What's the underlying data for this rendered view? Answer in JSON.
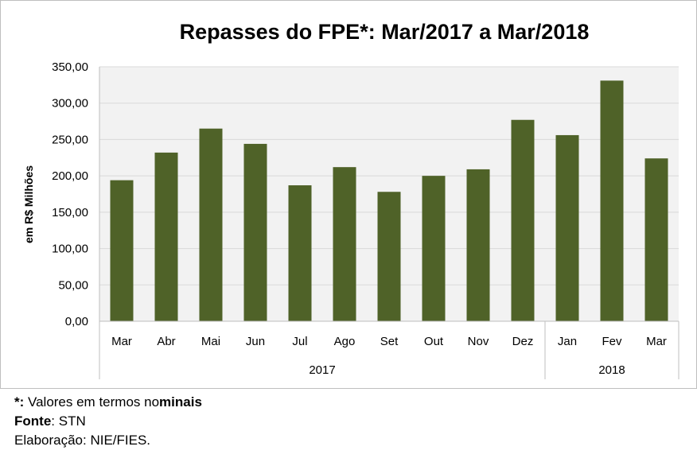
{
  "chart_data": {
    "type": "bar",
    "title": "Repasses do FPE*: Mar/2017 a Mar/2018",
    "ylabel": "em R$ Milhões",
    "xlabel": "",
    "categories": [
      "Mar",
      "Abr",
      "Mai",
      "Jun",
      "Jul",
      "Ago",
      "Set",
      "Out",
      "Nov",
      "Dez",
      "Jan",
      "Fev",
      "Mar"
    ],
    "groups": [
      {
        "label": "2017",
        "count": 10
      },
      {
        "label": "2018",
        "count": 3
      }
    ],
    "values": [
      194,
      232,
      265,
      244,
      187,
      212,
      178,
      200,
      209,
      277,
      256,
      331,
      224
    ],
    "ylim": [
      0,
      350
    ],
    "yticks": [
      0,
      50,
      100,
      150,
      200,
      250,
      300,
      350
    ],
    "ytick_labels": [
      "0,00",
      "50,00",
      "100,00",
      "150,00",
      "200,00",
      "250,00",
      "300,00",
      "350,00"
    ],
    "grid": true,
    "bar_color": "#4f6228",
    "plot_background": "#f2f2f2"
  },
  "footnotes": {
    "note_star": "*:",
    "note_text_a": " Valores em termos no",
    "note_text_b": "minais",
    "source_label": "Fonte",
    "source_value": ": STN",
    "elaboration": "Elaboração: NIE/FIES."
  }
}
